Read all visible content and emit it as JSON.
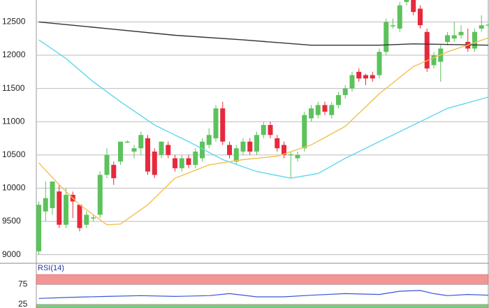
{
  "chart_data": [
    {
      "type": "candlestick",
      "open": [
        9050,
        9650,
        9700,
        9950,
        9450,
        9900,
        9750,
        9450,
        9550,
        9600,
        10200,
        10350,
        10400,
        10700,
        10550,
        10600,
        10750,
        10550,
        10500,
        10650,
        10450,
        10300,
        10450,
        10350,
        10450,
        10650,
        10750,
        11200,
        10650,
        10400,
        10550,
        10700,
        10550,
        10800,
        10950,
        10750,
        10650,
        10500,
        10450,
        10600,
        11050,
        11100,
        11250,
        11100,
        11250,
        11400,
        11500,
        11750,
        11700,
        11700,
        11700,
        12050,
        12450,
        12400,
        12800,
        12900,
        12700,
        12350,
        11850,
        11900,
        12200,
        12250,
        12300,
        12200,
        12100,
        12400,
        12450
      ],
      "high": [
        9800,
        10100,
        10100,
        10050,
        10000,
        9950,
        9750,
        9650,
        9600,
        10250,
        10600,
        10400,
        10700,
        10720,
        10650,
        10850,
        10800,
        10600,
        10700,
        10700,
        10500,
        10500,
        10500,
        10600,
        10750,
        10900,
        11250,
        11300,
        10700,
        10650,
        10750,
        10750,
        10850,
        11000,
        11000,
        10800,
        10700,
        10550,
        10550,
        11150,
        11250,
        11300,
        11300,
        11300,
        11450,
        11550,
        11750,
        11800,
        11720,
        11750,
        12100,
        12550,
        12550,
        12800,
        12950,
        12950,
        12750,
        12400,
        12050,
        12150,
        12350,
        12500,
        12450,
        12400,
        12400,
        12600,
        12500
      ],
      "low": [
        9000,
        9500,
        9600,
        9400,
        9400,
        9550,
        9350,
        9400,
        9500,
        9550,
        10150,
        10050,
        10350,
        10680,
        10450,
        10500,
        10200,
        10150,
        10450,
        10450,
        10250,
        10250,
        10300,
        10300,
        10400,
        10600,
        10700,
        10650,
        10450,
        10350,
        10500,
        10500,
        10500,
        10750,
        10750,
        10550,
        10450,
        10150,
        10400,
        10550,
        11000,
        11050,
        11100,
        11050,
        11200,
        11350,
        11450,
        11600,
        11550,
        11600,
        11650,
        12000,
        12400,
        12350,
        12750,
        12600,
        12400,
        11750,
        11800,
        11600,
        12150,
        12200,
        12250,
        12050,
        12050,
        12350,
        12400
      ],
      "close": [
        9750,
        9850,
        10100,
        9450,
        9900,
        9800,
        9400,
        9600,
        9560,
        10200,
        10500,
        10150,
        10700,
        10700,
        10600,
        10800,
        10250,
        10200,
        10700,
        10500,
        10300,
        10450,
        10350,
        10550,
        10700,
        10800,
        11200,
        10700,
        10500,
        10600,
        10700,
        10550,
        10800,
        10950,
        10800,
        10600,
        10500,
        10510,
        10500,
        11100,
        11200,
        11250,
        11150,
        11250,
        11400,
        11500,
        11700,
        11650,
        11650,
        11650,
        12050,
        12500,
        12450,
        12750,
        12900,
        12650,
        12450,
        11800,
        12000,
        12100,
        12300,
        12300,
        12350,
        12100,
        12350,
        12450,
        12460
      ],
      "up_color": "#5cc25c",
      "down_color": "#e8283c",
      "ylim": [
        8870,
        12830
      ],
      "yticks": [
        9000,
        9500,
        10000,
        10500,
        11000,
        11500,
        12000,
        12500
      ],
      "grid": true,
      "series": [
        {
          "color": "#333333",
          "x": [
            0,
            10,
            20,
            30,
            40,
            50,
            55,
            66
          ],
          "values": [
            12500,
            12400,
            12300,
            12230,
            12150,
            12150,
            12170,
            12150
          ]
        },
        {
          "color": "#5fd6ef",
          "x": [
            0,
            4,
            8,
            12,
            17,
            22,
            27,
            32,
            37,
            41,
            45,
            50,
            55,
            60,
            66
          ],
          "values": [
            12230,
            11950,
            11600,
            11300,
            10950,
            10700,
            10430,
            10250,
            10150,
            10220,
            10450,
            10700,
            10950,
            11200,
            11370
          ]
        },
        {
          "color": "#f2c14e",
          "x": [
            0,
            3,
            6,
            10,
            12,
            16,
            20,
            25,
            30,
            35,
            40,
            45,
            50,
            55,
            60,
            66
          ],
          "values": [
            10380,
            10050,
            9750,
            9450,
            9460,
            9750,
            10150,
            10350,
            10430,
            10480,
            10650,
            10930,
            11420,
            11830,
            12050,
            12260
          ]
        }
      ]
    },
    {
      "type": "line",
      "title": "RSI(14)",
      "x": [
        0,
        5,
        10,
        15,
        20,
        25,
        28,
        32,
        36,
        40,
        45,
        50,
        53,
        56,
        58,
        60,
        63,
        66
      ],
      "values": [
        40,
        43,
        45,
        47,
        45,
        47,
        52,
        44,
        44,
        48,
        52,
        50,
        58,
        60,
        52,
        47,
        50,
        48
      ],
      "color": "#3a55d8",
      "ylim": [
        16,
        128
      ],
      "yticks": [
        25,
        75
      ],
      "bands": [
        {
          "from": 75,
          "to": 100,
          "color": "#f08a8a"
        },
        {
          "from": 0,
          "to": 25,
          "color": "#6cc96c"
        }
      ]
    }
  ]
}
